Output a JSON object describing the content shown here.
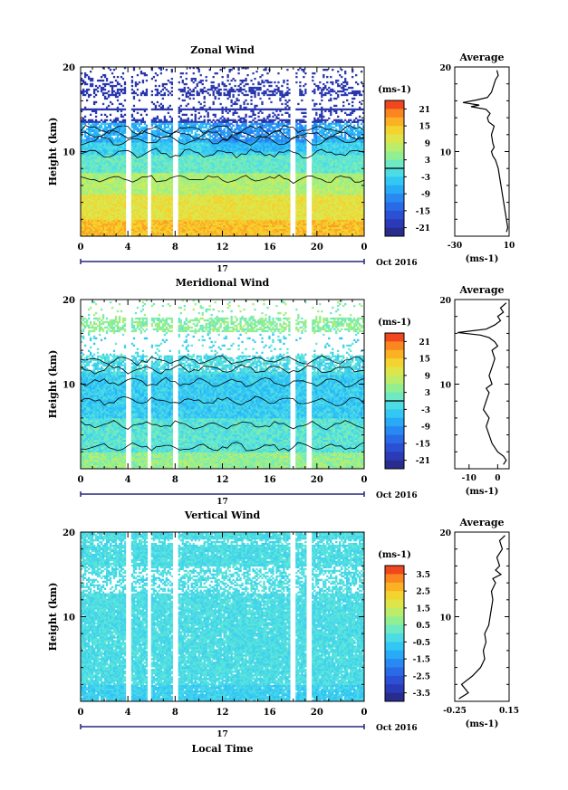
{
  "chart_data": [
    {
      "type": "heatmap",
      "title": "Zonal Wind",
      "ylabel": "Height (km)",
      "y_ticks": [
        "20",
        "10"
      ],
      "x_ticks": [
        "0",
        "4",
        "8",
        "12",
        "16",
        "20",
        "0"
      ],
      "date_marker": "17",
      "date_label": "Oct 2016",
      "xlabel": "",
      "ylim": [
        0,
        20
      ],
      "colorbar": {
        "unit": "(ms-1)",
        "ticks": [
          "21",
          "15",
          "9",
          "3",
          "-3",
          "-9",
          "-15",
          "-21"
        ],
        "range": [
          -24,
          24
        ]
      },
      "average_profile": {
        "title": "Average",
        "xlabel": "(ms-1)",
        "x_ticks": [
          "-30",
          "10"
        ],
        "y_ticks": [
          "20",
          "10"
        ],
        "xlim": [
          -30,
          10
        ],
        "ylim": [
          0,
          20
        ],
        "points": [
          [
            8,
            0.5
          ],
          [
            9,
            1
          ],
          [
            8,
            2
          ],
          [
            7,
            3
          ],
          [
            6,
            4
          ],
          [
            5,
            5
          ],
          [
            4,
            6
          ],
          [
            3,
            7
          ],
          [
            2,
            8
          ],
          [
            1,
            8.5
          ],
          [
            0,
            9
          ],
          [
            -2,
            9.5
          ],
          [
            -3,
            10
          ],
          [
            -1,
            10.5
          ],
          [
            -2,
            11
          ],
          [
            -3,
            12
          ],
          [
            -1,
            13
          ],
          [
            -5,
            13.5
          ],
          [
            -6,
            14
          ],
          [
            -4,
            14.5
          ],
          [
            -7,
            15
          ],
          [
            -18,
            15.3
          ],
          [
            -12,
            15.5
          ],
          [
            -24,
            15.8
          ],
          [
            -14,
            16.1
          ],
          [
            -6,
            16.4
          ],
          [
            -3,
            17
          ],
          [
            -1,
            18
          ],
          [
            0,
            18.5
          ],
          [
            2,
            19
          ],
          [
            1,
            19.6
          ]
        ]
      }
    },
    {
      "type": "heatmap",
      "title": "Meridional Wind",
      "ylabel": "Height (km)",
      "y_ticks": [
        "20",
        "10"
      ],
      "x_ticks": [
        "0",
        "4",
        "8",
        "12",
        "16",
        "20",
        "0"
      ],
      "date_marker": "17",
      "date_label": "Oct 2016",
      "xlabel": "",
      "ylim": [
        0,
        20
      ],
      "colorbar": {
        "unit": "(ms-1)",
        "ticks": [
          "21",
          "15",
          "9",
          "3",
          "-3",
          "-9",
          "-15",
          "-21"
        ],
        "range": [
          -24,
          24
        ]
      },
      "average_profile": {
        "title": "Average",
        "xlabel": "(ms-1)",
        "x_ticks": [
          "-10",
          "0"
        ],
        "y_ticks": [
          "20",
          "10"
        ],
        "xlim": [
          -15,
          4
        ],
        "ylim": [
          0,
          20
        ],
        "points": [
          [
            2,
            0.5
          ],
          [
            3,
            1
          ],
          [
            2,
            1.5
          ],
          [
            0,
            2
          ],
          [
            -2,
            3
          ],
          [
            -3,
            4
          ],
          [
            -4,
            5
          ],
          [
            -3,
            6
          ],
          [
            -5,
            7
          ],
          [
            -4,
            8
          ],
          [
            -3,
            9
          ],
          [
            -4,
            9.5
          ],
          [
            -2,
            10
          ],
          [
            -3,
            11
          ],
          [
            -2,
            12
          ],
          [
            -1,
            13
          ],
          [
            -2,
            14
          ],
          [
            0,
            14.5
          ],
          [
            -1,
            15
          ],
          [
            -3,
            15.5
          ],
          [
            -6,
            15.8
          ],
          [
            -14,
            16.1
          ],
          [
            -4,
            16.5
          ],
          [
            -1,
            17
          ],
          [
            1,
            17.5
          ],
          [
            0,
            18
          ],
          [
            2,
            18.5
          ],
          [
            1,
            19
          ],
          [
            3,
            19.6
          ]
        ]
      }
    },
    {
      "type": "heatmap",
      "title": "Vertical Wind",
      "ylabel": "Height (km)",
      "y_ticks": [
        "20",
        "10"
      ],
      "x_ticks": [
        "0",
        "4",
        "8",
        "12",
        "16",
        "20",
        "0"
      ],
      "date_marker": "17",
      "date_label": "Oct 2016",
      "xlabel": "Local Time",
      "ylim": [
        0,
        20
      ],
      "colorbar": {
        "unit": "(ms-1)",
        "ticks": [
          "3.5",
          "2.5",
          "1.5",
          "0.5",
          "-0.5",
          "-1.5",
          "-2.5",
          "-3.5"
        ],
        "range": [
          -4,
          4
        ]
      },
      "average_profile": {
        "title": "Average",
        "xlabel": "(ms-1)",
        "x_ticks": [
          "-0.25",
          "0.15"
        ],
        "y_ticks": [
          "20",
          "10"
        ],
        "xlim": [
          -0.25,
          0.15
        ],
        "ylim": [
          0,
          20
        ],
        "points": [
          [
            -0.22,
            0.3
          ],
          [
            -0.15,
            1
          ],
          [
            -0.2,
            2
          ],
          [
            -0.12,
            3
          ],
          [
            -0.06,
            4
          ],
          [
            -0.03,
            5
          ],
          [
            -0.04,
            6
          ],
          [
            -0.02,
            7
          ],
          [
            -0.03,
            8
          ],
          [
            0.0,
            9
          ],
          [
            0.01,
            10
          ],
          [
            0.02,
            11
          ],
          [
            0.03,
            12
          ],
          [
            0.02,
            13
          ],
          [
            0.05,
            14
          ],
          [
            0.03,
            14.5
          ],
          [
            0.09,
            15
          ],
          [
            0.05,
            15.5
          ],
          [
            0.08,
            16
          ],
          [
            0.06,
            17
          ],
          [
            0.1,
            18
          ],
          [
            0.08,
            19
          ],
          [
            0.12,
            19.6
          ]
        ]
      }
    }
  ]
}
